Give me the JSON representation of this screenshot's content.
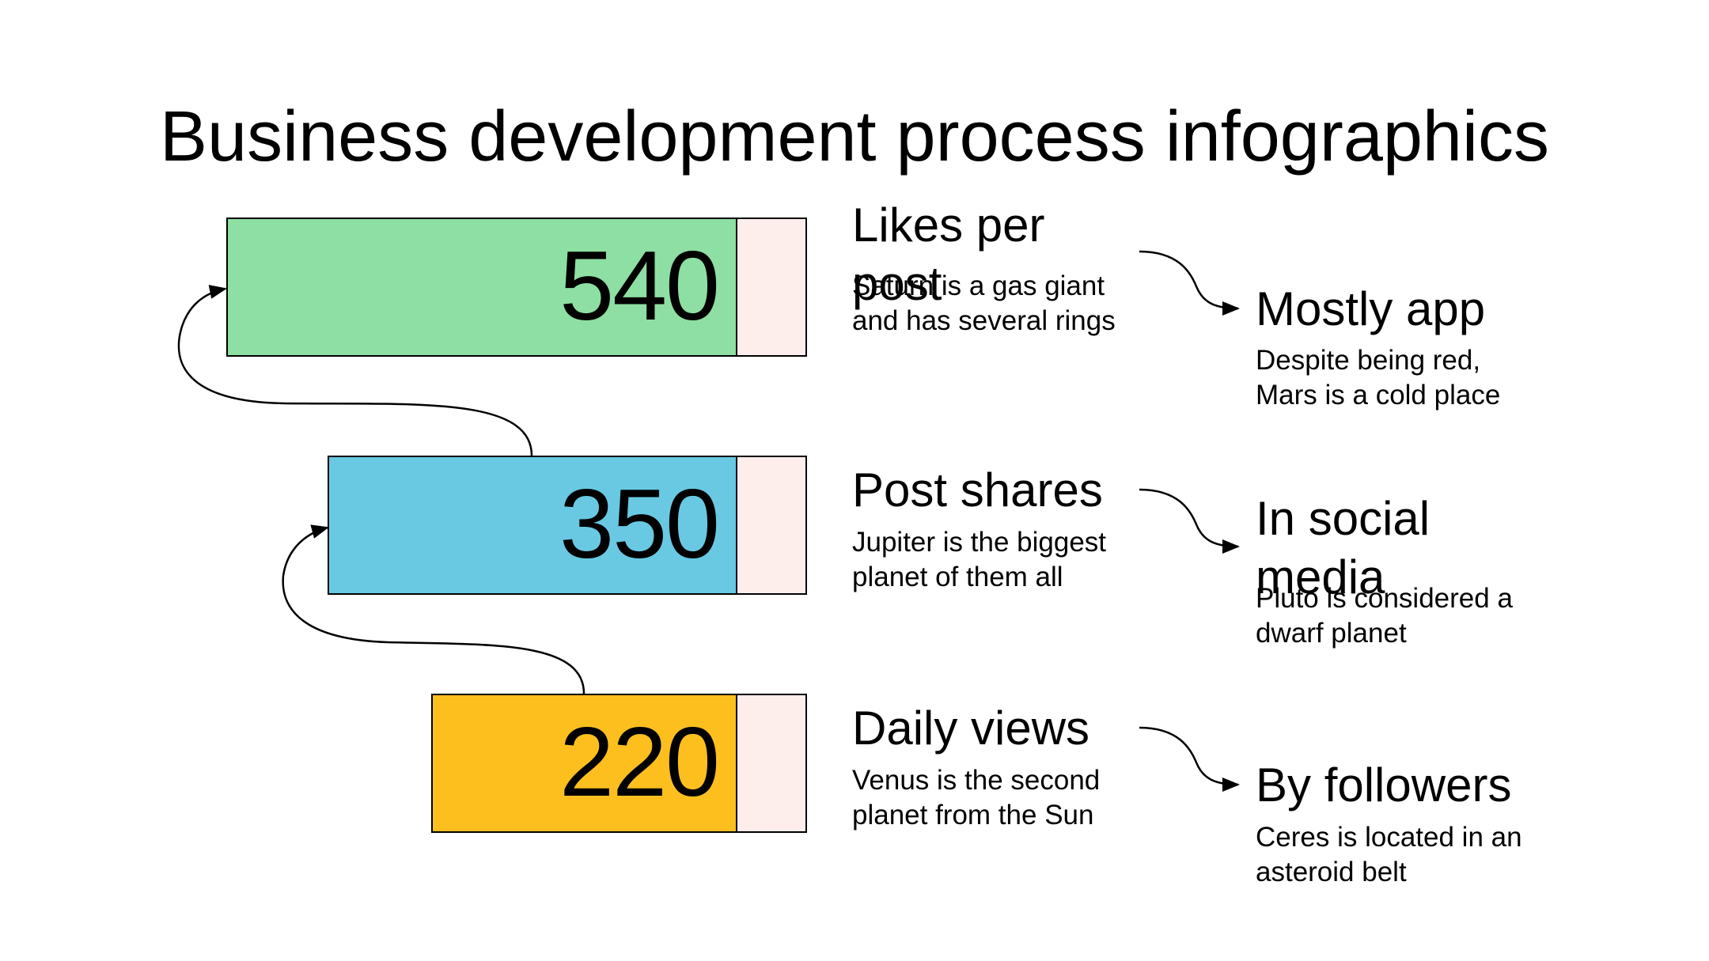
{
  "title": "Business development process infographics",
  "colors": {
    "bar_green": "#8edfa3",
    "bar_blue": "#69c9e3",
    "bar_yellow": "#fcbf1e",
    "tab_pink": "#fdeeec"
  },
  "metrics": [
    {
      "value": "540",
      "heading": "Likes per post",
      "description": "Saturn is a gas giant and has several rings",
      "outcome_heading": "Mostly app",
      "outcome_description": "Despite being red, Mars is a cold place"
    },
    {
      "value": "350",
      "heading": "Post shares",
      "description": "Jupiter is the biggest planet of them all",
      "outcome_heading": "In social media",
      "outcome_description": "Pluto is considered a dwarf planet"
    },
    {
      "value": "220",
      "heading": "Daily views",
      "description": "Venus is the second planet from the Sun",
      "outcome_heading": "By followers",
      "outcome_description": "Ceres is located in an asteroid belt"
    }
  ]
}
